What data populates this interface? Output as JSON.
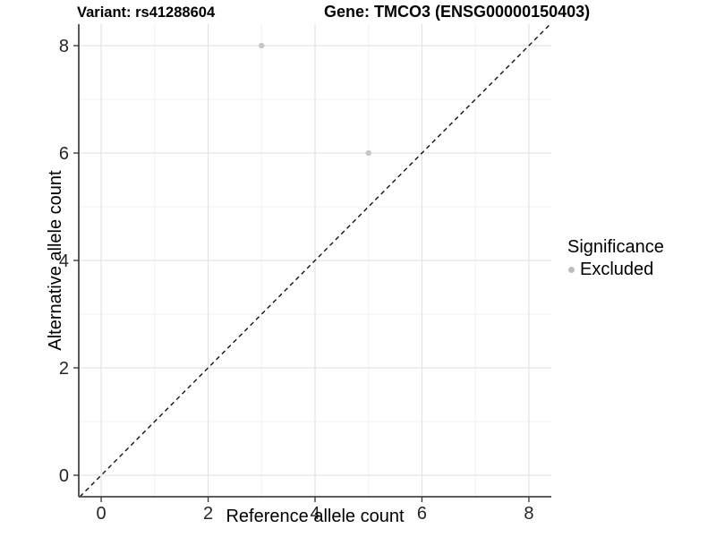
{
  "chart_data": {
    "type": "scatter",
    "title_left": "Variant: rs41288604",
    "title_right": "Gene: TMCO3 (ENSG00000150403)",
    "xlabel": "Reference allele count",
    "ylabel": "Alternative allele count",
    "xlim": [
      -0.42,
      8.42
    ],
    "ylim": [
      -0.4,
      8.4
    ],
    "x_major_ticks": [
      0,
      2,
      4,
      6,
      8
    ],
    "y_major_ticks": [
      0,
      2,
      4,
      6,
      8
    ],
    "x_minor_ticks": [
      1,
      3,
      5,
      7
    ],
    "y_minor_ticks": [
      1,
      3,
      5,
      7
    ],
    "grid": "major and minor, light gray on white",
    "series": [
      {
        "name": "Excluded",
        "color": "#c7c7c7",
        "point_radius": 3.2,
        "points": [
          [
            3,
            8
          ],
          [
            5,
            6
          ]
        ]
      }
    ],
    "reference_line": {
      "kind": "identity y = x",
      "style": "dashed",
      "color": "#111111"
    },
    "legend": {
      "title": "Significance",
      "position": "right",
      "items": [
        {
          "label": "Excluded",
          "color": "#bdbdbd"
        }
      ]
    },
    "colors": {
      "background": "#ffffff",
      "grid_major": "#e3e3e3",
      "grid_minor": "#f0f0f0",
      "axis_line": "#474747",
      "tick_mark": "#333333",
      "tick_label": "#262626"
    }
  }
}
